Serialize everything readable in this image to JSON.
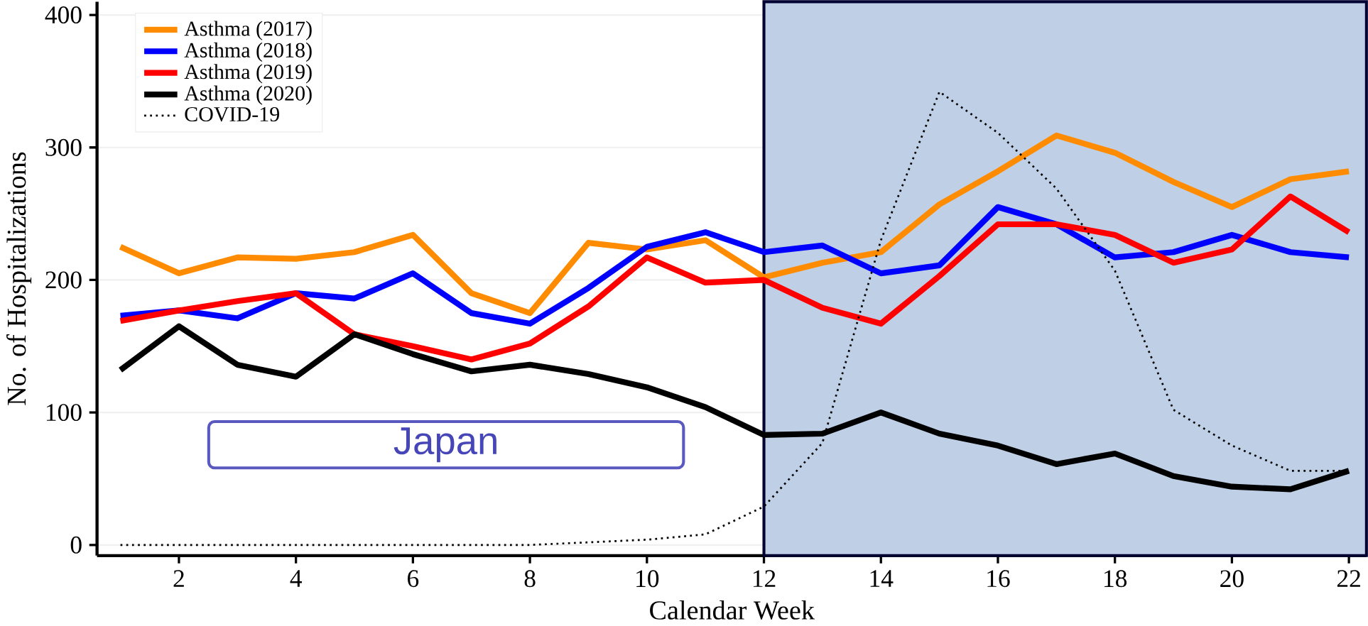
{
  "chart_data": {
    "type": "line",
    "xlabel": "Calendar Week",
    "ylabel": "No. of Hospitalizations",
    "x": [
      1,
      2,
      3,
      4,
      5,
      6,
      7,
      8,
      9,
      10,
      11,
      12,
      13,
      14,
      15,
      16,
      17,
      18,
      19,
      20,
      21,
      22
    ],
    "xlim": [
      0.6,
      22.3
    ],
    "xticks": [
      2,
      4,
      6,
      8,
      10,
      12,
      14,
      16,
      18,
      20,
      22
    ],
    "ylim": [
      -8,
      410
    ],
    "yticks": [
      0,
      100,
      200,
      300,
      400
    ],
    "grid": "y",
    "legend": "top left",
    "line_style": "solid",
    "marker": "none",
    "series": [
      {
        "name": "Asthma (2017)",
        "color": "#ff8c00",
        "values": [
          225,
          205,
          217,
          216,
          221,
          234,
          190,
          175,
          228,
          223,
          230,
          202,
          213,
          221,
          257,
          282,
          309,
          296,
          274,
          255,
          276,
          282
        ]
      },
      {
        "name": "Asthma (2018)",
        "color": "#0000ff",
        "values": [
          173,
          177,
          171,
          190,
          186,
          205,
          175,
          167,
          194,
          225,
          236,
          221,
          226,
          205,
          211,
          255,
          242,
          217,
          221,
          234,
          221,
          217
        ]
      },
      {
        "name": "Asthma (2019)",
        "color": "#ff0000",
        "values": [
          169,
          177,
          184,
          190,
          159,
          150,
          140,
          152,
          180,
          217,
          198,
          200,
          179,
          167,
          203,
          242,
          242,
          234,
          213,
          223,
          263,
          236
        ]
      },
      {
        "name": "Asthma (2020)",
        "color": "#000000",
        "values": [
          132,
          165,
          136,
          127,
          159,
          144,
          131,
          136,
          129,
          119,
          104,
          83,
          84,
          100,
          84,
          75,
          61,
          69,
          52,
          44,
          42,
          56
        ]
      },
      {
        "name": "COVID-19",
        "color": "#000000",
        "line_style": "dotted",
        "values": [
          0,
          0,
          0,
          0,
          0,
          0,
          0,
          0,
          2,
          4,
          8,
          29,
          77,
          230,
          342,
          311,
          269,
          207,
          102,
          75,
          56,
          56
        ]
      }
    ],
    "bands": [
      {
        "axis": "x",
        "from": 12,
        "to": 22.3,
        "color": "#bfd0e6"
      }
    ],
    "annotations": [
      "Japan"
    ]
  }
}
